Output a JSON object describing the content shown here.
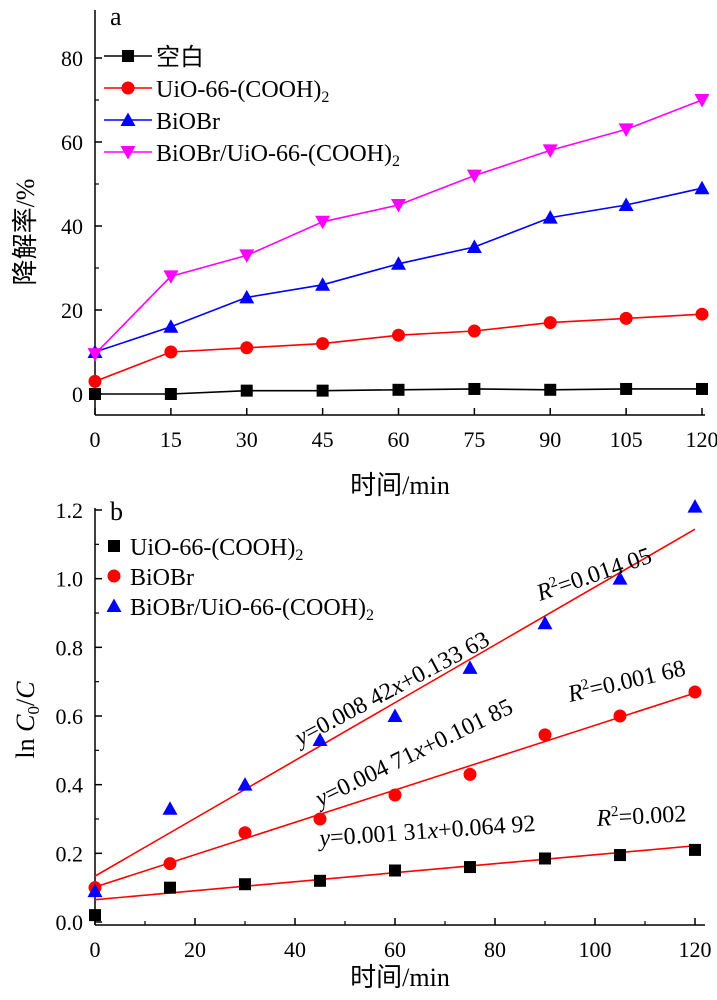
{
  "chart_data": [
    {
      "type": "line",
      "panel_label": "a",
      "xlabel": "时间/min",
      "ylabel": "降解率/%",
      "xlim": [
        0,
        120
      ],
      "ylim": [
        -5,
        90
      ],
      "x_ticks": [
        0,
        15,
        30,
        45,
        60,
        75,
        90,
        105,
        120
      ],
      "y_ticks": [
        0,
        20,
        40,
        60,
        80
      ],
      "x": [
        0,
        15,
        30,
        45,
        60,
        75,
        90,
        105,
        120
      ],
      "legend_position": "top-left",
      "series": [
        {
          "name": "空白",
          "name_sub": "",
          "color": "#000000",
          "marker": "square",
          "values": [
            0,
            0,
            0.8,
            0.8,
            1,
            1.2,
            1,
            1.2,
            1.2
          ]
        },
        {
          "name": "UiO-66-(COOH)",
          "name_sub": "2",
          "color": "#ff0000",
          "marker": "circle",
          "values": [
            3,
            10,
            11,
            12,
            14,
            15,
            17,
            18,
            19
          ]
        },
        {
          "name": "BiOBr",
          "name_sub": "",
          "color": "#0000ff",
          "marker": "triangle-up",
          "values": [
            10,
            16,
            23,
            26,
            31,
            35,
            42,
            45,
            49
          ]
        },
        {
          "name": "BiOBr/UiO-66-(COOH)",
          "name_sub": "2",
          "color": "#ff00ff",
          "marker": "triangle-down",
          "values": [
            9.5,
            28,
            33,
            41,
            45,
            52,
            58,
            63,
            70
          ]
        }
      ]
    },
    {
      "type": "scatter",
      "panel_label": "b",
      "xlabel": "时间/min",
      "ylabel": "ln C0/C",
      "xlim": [
        0,
        122
      ],
      "ylim": [
        0,
        1.2
      ],
      "x_ticks": [
        0,
        20,
        40,
        60,
        80,
        100,
        120
      ],
      "y_ticks": [
        0.0,
        0.2,
        0.4,
        0.6,
        0.8,
        1.0,
        1.2
      ],
      "x": [
        0,
        15,
        30,
        45,
        60,
        75,
        90,
        105,
        120
      ],
      "legend_position": "top-left",
      "fit_line_color": "#ff0000",
      "series": [
        {
          "name": "UiO-66-(COOH)",
          "name_sub": "2",
          "color": "#000000",
          "marker": "square",
          "values": [
            0.02,
            0.1,
            0.11,
            0.12,
            0.15,
            0.16,
            0.185,
            0.195,
            0.21
          ],
          "fit": {
            "slope": 0.00131,
            "intercept": 0.06492
          },
          "equation": "y=0.001 31x+0.064 92",
          "r2": "=0.002"
        },
        {
          "name": "BiOBr",
          "name_sub": "",
          "color": "#ff0000",
          "marker": "circle",
          "values": [
            0.1,
            0.17,
            0.26,
            0.3,
            0.37,
            0.43,
            0.545,
            0.6,
            0.67
          ],
          "fit": {
            "slope": 0.00471,
            "intercept": 0.10185
          },
          "equation": "y=0.004 71x+0.101 85",
          "r2": "=0.001 68"
        },
        {
          "name": "BiOBr/UiO-66-(COOH)",
          "name_sub": "2",
          "color": "#0000ff",
          "marker": "triangle-up",
          "values": [
            0.09,
            0.33,
            0.4,
            0.53,
            0.6,
            0.74,
            0.87,
            1.0,
            1.21
          ],
          "fit": {
            "slope": 0.00842,
            "intercept": 0.13363
          },
          "equation": "y=0.008 42x+0.133 63",
          "r2": "=0.014 05"
        }
      ]
    }
  ]
}
